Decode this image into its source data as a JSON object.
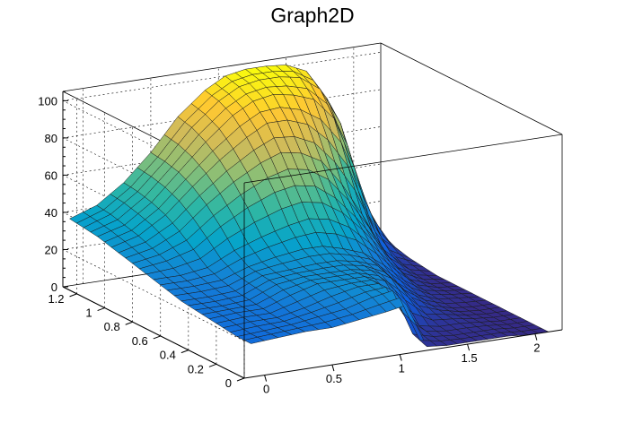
{
  "chart_data": {
    "type": "surface",
    "title": "Graph2D",
    "xlabel": "",
    "ylabel": "",
    "zlabel": "",
    "xlim": [
      -0.15,
      2.2
    ],
    "ylim": [
      0,
      1.3
    ],
    "zlim": [
      0,
      105
    ],
    "grid": true,
    "colormap": "viridis-like",
    "colors": {
      "colormap_stops": [
        "#352a87",
        "#0f5cdd",
        "#1481d6",
        "#06a4ca",
        "#2eb7a4",
        "#87bf77",
        "#d1bb59",
        "#fec832",
        "#f9fb0e"
      ],
      "frame": "#000000"
    },
    "x_ticks": [
      "0",
      "0.5",
      "1",
      "1.5",
      "2"
    ],
    "y_ticks": [
      "0",
      "0.2",
      "0.4",
      "0.6",
      "0.8",
      "1",
      "1.2"
    ],
    "z_ticks": [
      "0",
      "20",
      "40",
      "60",
      "80",
      "100"
    ],
    "x_tick_values": [
      0,
      0.5,
      1,
      1.5,
      2
    ],
    "y_tick_values": [
      0,
      0.2,
      0.4,
      0.6,
      0.8,
      1.0,
      1.2
    ],
    "z_tick_values": [
      0,
      20,
      40,
      60,
      80,
      100
    ],
    "x": [
      -0.1,
      0.1,
      0.3,
      0.5,
      0.7,
      0.9,
      1.05,
      1.2,
      1.35,
      1.5,
      1.65,
      1.8,
      1.95,
      2.1
    ],
    "y": [
      0.0,
      0.1,
      0.2,
      0.3,
      0.4,
      0.5,
      0.6,
      0.7,
      0.8,
      0.9,
      1.0,
      1.1,
      1.2,
      1.3
    ],
    "z": [
      [
        18,
        19,
        20,
        20,
        22,
        24,
        26,
        2,
        1,
        1,
        1,
        1,
        0,
        0
      ],
      [
        18,
        19,
        20,
        22,
        24,
        28,
        30,
        5,
        2,
        1,
        1,
        1,
        0,
        0
      ],
      [
        19,
        20,
        20,
        23,
        27,
        30,
        30,
        18,
        4,
        2,
        2,
        1,
        0,
        0
      ],
      [
        20,
        21,
        21,
        26,
        30,
        30,
        30,
        26,
        14,
        5,
        3,
        1,
        0,
        0
      ],
      [
        21,
        21,
        22,
        28,
        30,
        30,
        30,
        28,
        22,
        10,
        4,
        1,
        0,
        0
      ],
      [
        22,
        22,
        23,
        29,
        30,
        31,
        31,
        29,
        25,
        14,
        6,
        2,
        1,
        0
      ],
      [
        24,
        24,
        25,
        30,
        33,
        35,
        35,
        32,
        28,
        20,
        10,
        3,
        1,
        0
      ],
      [
        26,
        26,
        28,
        35,
        40,
        44,
        46,
        44,
        38,
        28,
        16,
        5,
        1,
        0
      ],
      [
        28,
        30,
        34,
        44,
        52,
        58,
        60,
        58,
        50,
        38,
        24,
        8,
        2,
        0
      ],
      [
        30,
        33,
        40,
        52,
        62,
        70,
        74,
        72,
        66,
        52,
        34,
        14,
        4,
        1
      ],
      [
        32,
        36,
        45,
        58,
        70,
        80,
        86,
        86,
        82,
        72,
        56,
        28,
        8,
        2
      ],
      [
        34,
        38,
        48,
        62,
        76,
        88,
        94,
        96,
        94,
        90,
        78,
        50,
        16,
        4
      ],
      [
        35,
        40,
        50,
        64,
        80,
        92,
        98,
        100,
        100,
        98,
        90,
        70,
        30,
        8
      ],
      [
        36,
        41,
        51,
        65,
        82,
        94,
        100,
        102,
        102,
        101,
        96,
        80,
        40,
        12
      ]
    ]
  }
}
